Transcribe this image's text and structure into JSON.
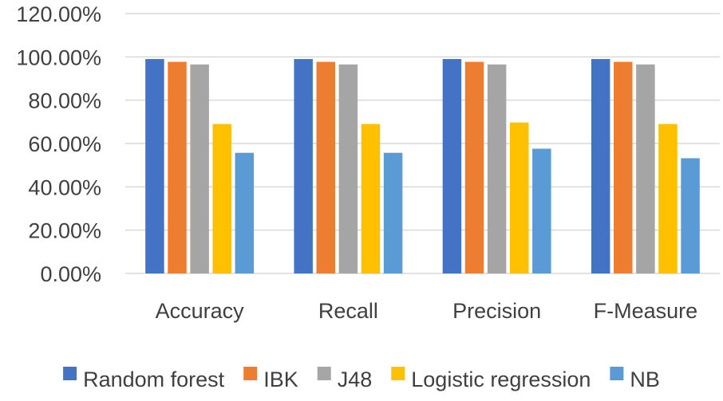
{
  "chart_data": {
    "type": "bar",
    "title": "",
    "xlabel": "",
    "ylabel": "",
    "categories": [
      "Accuracy",
      "Recall",
      "Precision",
      "F-Measure"
    ],
    "series": [
      {
        "name": "Random forest",
        "color": "#4472C4",
        "values": [
          0.99,
          0.99,
          0.99,
          0.99
        ]
      },
      {
        "name": "IBK",
        "color": "#ED7D31",
        "values": [
          0.977,
          0.977,
          0.977,
          0.977
        ]
      },
      {
        "name": "J48",
        "color": "#A5A5A5",
        "values": [
          0.965,
          0.965,
          0.965,
          0.965
        ]
      },
      {
        "name": "Logistic regression",
        "color": "#FFC000",
        "values": [
          0.69,
          0.69,
          0.697,
          0.69
        ]
      },
      {
        "name": "NB",
        "color": "#5B9BD5",
        "values": [
          0.557,
          0.557,
          0.576,
          0.532
        ]
      }
    ],
    "ylim": [
      0,
      1.2
    ],
    "yticks": [
      0,
      0.2,
      0.4,
      0.6,
      0.8,
      1.0,
      1.2
    ],
    "ytick_labels": [
      "0.00%",
      "20.00%",
      "40.00%",
      "60.00%",
      "80.00%",
      "100.00%",
      "120.00%"
    ],
    "grid": true,
    "legend_position": "bottom",
    "colors": {
      "grid": "#D9D9D9",
      "text": "#404040"
    }
  }
}
